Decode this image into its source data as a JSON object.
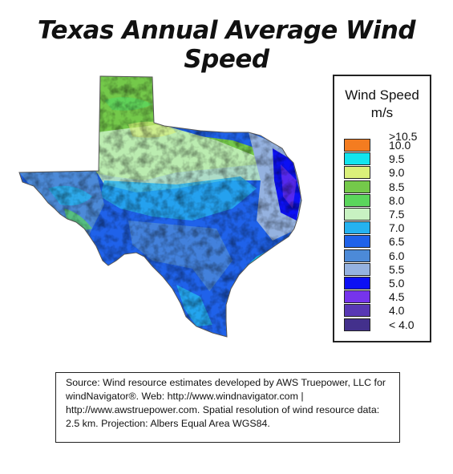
{
  "title": "Texas Annual Average Wind Speed",
  "legend": {
    "title": "Wind Speed",
    "units": "m/s",
    "top_label": ">10.5",
    "entries": [
      {
        "label": "10.0",
        "color": "#f47c20"
      },
      {
        "label": "9.5",
        "color": "#13e4ee"
      },
      {
        "label": "9.0",
        "color": "#dbf07a"
      },
      {
        "label": "8.5",
        "color": "#74c94a"
      },
      {
        "label": "8.0",
        "color": "#5bd65c"
      },
      {
        "label": "7.5",
        "color": "#c8f2c2"
      },
      {
        "label": "7.0",
        "color": "#25b2f0"
      },
      {
        "label": "6.5",
        "color": "#1f62ea"
      },
      {
        "label": "6.0",
        "color": "#4c8ad8"
      },
      {
        "label": "5.5",
        "color": "#95b2e0"
      },
      {
        "label": "5.0",
        "color": "#0c10f4"
      },
      {
        "label": "4.5",
        "color": "#7634ec"
      },
      {
        "label": "4.0",
        "color": "#5838b4"
      },
      {
        "label": "< 4.0",
        "color": "#43308c"
      }
    ]
  },
  "source": "Source: Wind resource estimates developed by AWS Truepower, LLC for windNavigator®. Web: http://www.windnavigator.com | http://www.awstruepower.com. Spatial resolution of wind resource data: 2.5 km. Projection: Albers Equal Area WGS84."
}
